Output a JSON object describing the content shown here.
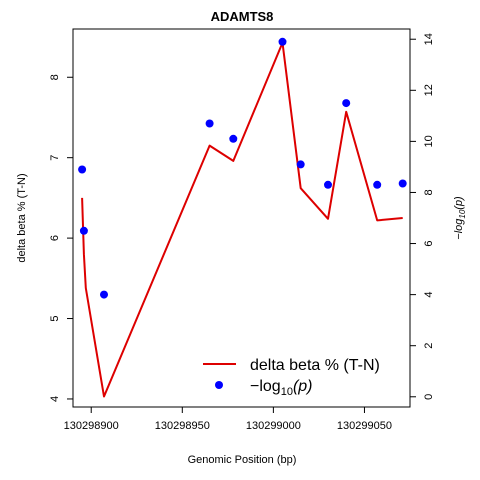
{
  "chart_data": {
    "type": "line",
    "title": "ADAMTS8",
    "xlabel": "Genomic Position (bp)",
    "ylabel": "delta beta % (T-N)",
    "y2label": "−log10(p)",
    "xlim": [
      130298890,
      130299075
    ],
    "ylim": [
      3.9,
      8.6
    ],
    "y2lim": [
      -0.4,
      14.4
    ],
    "xticks": [
      130298900,
      130298950,
      130299000,
      130299050
    ],
    "xtick_labels": [
      "130298900",
      "130298950",
      "130299000",
      "130299050"
    ],
    "yticks": [
      4,
      5,
      6,
      7,
      8
    ],
    "ytick_labels": [
      "4",
      "5",
      "6",
      "7",
      "8"
    ],
    "y2ticks": [
      0,
      2,
      4,
      6,
      8,
      10,
      12,
      14
    ],
    "y2tick_labels": [
      "0",
      "2",
      "4",
      "6",
      "8",
      "10",
      "12",
      "14"
    ],
    "legend_position": "bottom-right",
    "series": [
      {
        "name": "delta beta % (T-N)",
        "kind": "line",
        "axis": "left",
        "color": "#dd0000",
        "x": [
          130298895,
          130298896,
          130298897,
          130298907,
          130298965,
          130298978,
          130299005,
          130299015,
          130299030,
          130299040,
          130299057,
          130299071
        ],
        "y": [
          6.5,
          5.8,
          5.38,
          4.03,
          7.15,
          6.96,
          8.43,
          6.62,
          6.24,
          7.57,
          6.22,
          6.25
        ]
      },
      {
        "name": "−log10(p)",
        "kind": "scatter",
        "axis": "right",
        "color": "#0000ff",
        "x": [
          130298895,
          130298896,
          130298907,
          130298965,
          130298978,
          130299005,
          130299015,
          130299030,
          130299040,
          130299057,
          130299071
        ],
        "y": [
          8.9,
          6.5,
          4.0,
          10.7,
          10.1,
          13.9,
          9.1,
          8.3,
          11.5,
          8.3,
          8.35
        ]
      }
    ],
    "legend": {
      "line_label": "delta beta % (T-N)",
      "point_prefix": "−log",
      "point_sub": "10",
      "point_suffix": "(p)"
    }
  }
}
